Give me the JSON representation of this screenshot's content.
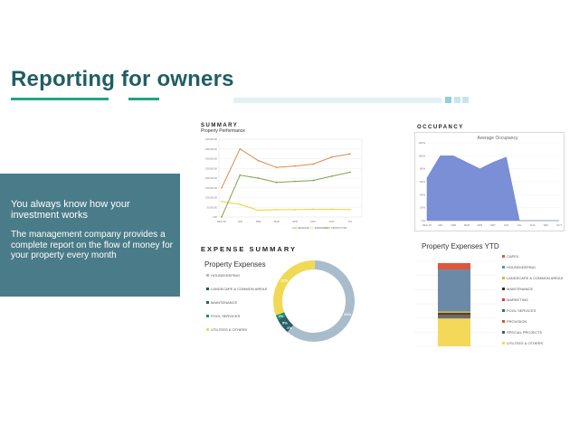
{
  "page": {
    "title": "Reporting for owners",
    "panel_heading": "You always know how your investment works",
    "panel_body": "The management company provides a complete report on the flow of money for your property every month"
  },
  "colors": {
    "accent": "#1fa58a",
    "title": "#1f5e63",
    "panel": "#4a7b88",
    "band": "#e1f0f3"
  },
  "summary": {
    "section": "SUMMARY",
    "chart_title": "Property Performance",
    "y_ticks": [
      "400,000.00",
      "350,000.00",
      "300,000.00",
      "250,000.00",
      "200,000.00",
      "150,000.00",
      "100,000.00",
      "50,000.00",
      "0.00"
    ],
    "x_ticks": [
      "DEC-15",
      "JAN",
      "FEB",
      "MAR",
      "APR",
      "MAY",
      "JUN",
      "JUL"
    ],
    "legend": [
      "REVENUE",
      "EXPENSES",
      "PROFIT/LOSS"
    ]
  },
  "occupancy": {
    "section": "OCCUPANCY",
    "chart_title": "Average Occupancy",
    "y_ticks": [
      "120%",
      "100%",
      "80%",
      "60%",
      "40%",
      "20%",
      "0%"
    ],
    "x_ticks": [
      "DEC-15",
      "JAN",
      "FEB",
      "MAR",
      "APR",
      "MAY",
      "JUN",
      "JUL",
      "AUG",
      "SEP",
      "OCT"
    ]
  },
  "expense_summary": {
    "section": "EXPENSE SUMMARY",
    "chart_title": "Property Expenses",
    "legend": [
      "HOUSEKEEPING",
      "LANDSCAPE & COMMON AREAS",
      "MAINTENANCE",
      "POOL SERVICES",
      "UTILITIES & OTHERS"
    ],
    "labels": [
      "61%",
      "31%",
      "5%",
      "1%",
      "2%"
    ]
  },
  "ytd": {
    "chart_title": "Property Expenses YTD",
    "legend": [
      "CAPEX",
      "HOUSEKEEPING",
      "LANDSCAPE & COMMON AREAS",
      "MAINTENANCE",
      "MARKETING",
      "POOL SERVICES",
      "PROVISION",
      "SPECIAL PROJECTS",
      "UTILITIES & OTHERS"
    ]
  },
  "chart_data": [
    {
      "type": "line",
      "title": "Property Performance",
      "categories": [
        "DEC-15",
        "JAN",
        "FEB",
        "MAR",
        "APR",
        "MAY",
        "JUN",
        "JUL"
      ],
      "ylim": [
        0,
        400000
      ],
      "series": [
        {
          "name": "REVENUE",
          "values": [
            150000,
            350000,
            290000,
            255000,
            262000,
            272000,
            308000,
            325000
          ]
        },
        {
          "name": "EXPENSES",
          "values": [
            80000,
            65000,
            35000,
            38000,
            38000,
            40000,
            40000,
            38000
          ]
        },
        {
          "name": "PROFIT/LOSS",
          "values": [
            0,
            215000,
            200000,
            178000,
            183000,
            188000,
            210000,
            230000
          ]
        }
      ]
    },
    {
      "type": "area",
      "title": "Average Occupancy",
      "categories": [
        "DEC-15",
        "JAN",
        "FEB",
        "MAR",
        "APR",
        "MAY",
        "JUN",
        "JUL",
        "AUG",
        "SEP",
        "OCT"
      ],
      "ylim": [
        0,
        120
      ],
      "values": [
        66,
        100,
        100,
        90,
        80,
        90,
        98,
        0,
        0,
        0,
        0
      ]
    },
    {
      "type": "pie",
      "title": "Property Expenses",
      "categories": [
        "HOUSEKEEPING",
        "LANDSCAPE & COMMON AREAS",
        "MAINTENANCE",
        "POOL SERVICES",
        "UTILITIES & OTHERS"
      ],
      "values": [
        61,
        1,
        5,
        2,
        31
      ]
    },
    {
      "type": "bar",
      "title": "Property Expenses YTD",
      "categories": [
        "CAPEX",
        "HOUSEKEEPING",
        "LANDSCAPE & COMMON AREAS",
        "MAINTENANCE",
        "MARKETING",
        "POOL SERVICES",
        "PROVISION",
        "SPECIAL PROJECTS",
        "UTILITIES & OTHERS"
      ],
      "values": [
        8,
        53,
        2,
        2,
        1,
        2,
        1,
        1,
        35
      ]
    }
  ]
}
